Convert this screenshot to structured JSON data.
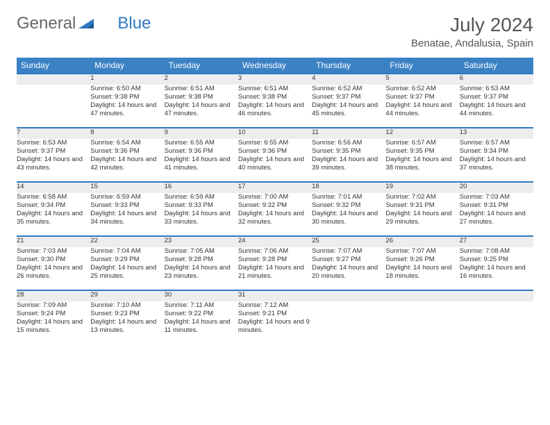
{
  "logo": {
    "text1": "General",
    "text2": "Blue"
  },
  "title": {
    "month": "July 2024",
    "location": "Benatae, Andalusia, Spain"
  },
  "styling": {
    "header_bg": "#3b82c4",
    "header_text": "#ffffff",
    "daynum_bg": "#eceeee",
    "row_border": "#2f78c4",
    "body_text": "#333333",
    "page_bg": "#ffffff",
    "font_small": 9.5,
    "font_daynum": 11,
    "font_header": 12,
    "font_title": 28,
    "font_location": 15
  },
  "day_headers": [
    "Sunday",
    "Monday",
    "Tuesday",
    "Wednesday",
    "Thursday",
    "Friday",
    "Saturday"
  ],
  "weeks": [
    [
      null,
      {
        "n": "1",
        "sr": "Sunrise: 6:50 AM",
        "ss": "Sunset: 9:38 PM",
        "dl": "Daylight: 14 hours and 47 minutes."
      },
      {
        "n": "2",
        "sr": "Sunrise: 6:51 AM",
        "ss": "Sunset: 9:38 PM",
        "dl": "Daylight: 14 hours and 47 minutes."
      },
      {
        "n": "3",
        "sr": "Sunrise: 6:51 AM",
        "ss": "Sunset: 9:38 PM",
        "dl": "Daylight: 14 hours and 46 minutes."
      },
      {
        "n": "4",
        "sr": "Sunrise: 6:52 AM",
        "ss": "Sunset: 9:37 PM",
        "dl": "Daylight: 14 hours and 45 minutes."
      },
      {
        "n": "5",
        "sr": "Sunrise: 6:52 AM",
        "ss": "Sunset: 9:37 PM",
        "dl": "Daylight: 14 hours and 44 minutes."
      },
      {
        "n": "6",
        "sr": "Sunrise: 6:53 AM",
        "ss": "Sunset: 9:37 PM",
        "dl": "Daylight: 14 hours and 44 minutes."
      }
    ],
    [
      {
        "n": "7",
        "sr": "Sunrise: 6:53 AM",
        "ss": "Sunset: 9:37 PM",
        "dl": "Daylight: 14 hours and 43 minutes."
      },
      {
        "n": "8",
        "sr": "Sunrise: 6:54 AM",
        "ss": "Sunset: 9:36 PM",
        "dl": "Daylight: 14 hours and 42 minutes."
      },
      {
        "n": "9",
        "sr": "Sunrise: 6:55 AM",
        "ss": "Sunset: 9:36 PM",
        "dl": "Daylight: 14 hours and 41 minutes."
      },
      {
        "n": "10",
        "sr": "Sunrise: 6:55 AM",
        "ss": "Sunset: 9:36 PM",
        "dl": "Daylight: 14 hours and 40 minutes."
      },
      {
        "n": "11",
        "sr": "Sunrise: 6:56 AM",
        "ss": "Sunset: 9:35 PM",
        "dl": "Daylight: 14 hours and 39 minutes."
      },
      {
        "n": "12",
        "sr": "Sunrise: 6:57 AM",
        "ss": "Sunset: 9:35 PM",
        "dl": "Daylight: 14 hours and 38 minutes."
      },
      {
        "n": "13",
        "sr": "Sunrise: 6:57 AM",
        "ss": "Sunset: 9:34 PM",
        "dl": "Daylight: 14 hours and 37 minutes."
      }
    ],
    [
      {
        "n": "14",
        "sr": "Sunrise: 6:58 AM",
        "ss": "Sunset: 9:34 PM",
        "dl": "Daylight: 14 hours and 35 minutes."
      },
      {
        "n": "15",
        "sr": "Sunrise: 6:59 AM",
        "ss": "Sunset: 9:33 PM",
        "dl": "Daylight: 14 hours and 34 minutes."
      },
      {
        "n": "16",
        "sr": "Sunrise: 6:59 AM",
        "ss": "Sunset: 9:33 PM",
        "dl": "Daylight: 14 hours and 33 minutes."
      },
      {
        "n": "17",
        "sr": "Sunrise: 7:00 AM",
        "ss": "Sunset: 9:32 PM",
        "dl": "Daylight: 14 hours and 32 minutes."
      },
      {
        "n": "18",
        "sr": "Sunrise: 7:01 AM",
        "ss": "Sunset: 9:32 PM",
        "dl": "Daylight: 14 hours and 30 minutes."
      },
      {
        "n": "19",
        "sr": "Sunrise: 7:02 AM",
        "ss": "Sunset: 9:31 PM",
        "dl": "Daylight: 14 hours and 29 minutes."
      },
      {
        "n": "20",
        "sr": "Sunrise: 7:03 AM",
        "ss": "Sunset: 9:31 PM",
        "dl": "Daylight: 14 hours and 27 minutes."
      }
    ],
    [
      {
        "n": "21",
        "sr": "Sunrise: 7:03 AM",
        "ss": "Sunset: 9:30 PM",
        "dl": "Daylight: 14 hours and 26 minutes."
      },
      {
        "n": "22",
        "sr": "Sunrise: 7:04 AM",
        "ss": "Sunset: 9:29 PM",
        "dl": "Daylight: 14 hours and 25 minutes."
      },
      {
        "n": "23",
        "sr": "Sunrise: 7:05 AM",
        "ss": "Sunset: 9:28 PM",
        "dl": "Daylight: 14 hours and 23 minutes."
      },
      {
        "n": "24",
        "sr": "Sunrise: 7:06 AM",
        "ss": "Sunset: 9:28 PM",
        "dl": "Daylight: 14 hours and 21 minutes."
      },
      {
        "n": "25",
        "sr": "Sunrise: 7:07 AM",
        "ss": "Sunset: 9:27 PM",
        "dl": "Daylight: 14 hours and 20 minutes."
      },
      {
        "n": "26",
        "sr": "Sunrise: 7:07 AM",
        "ss": "Sunset: 9:26 PM",
        "dl": "Daylight: 14 hours and 18 minutes."
      },
      {
        "n": "27",
        "sr": "Sunrise: 7:08 AM",
        "ss": "Sunset: 9:25 PM",
        "dl": "Daylight: 14 hours and 16 minutes."
      }
    ],
    [
      {
        "n": "28",
        "sr": "Sunrise: 7:09 AM",
        "ss": "Sunset: 9:24 PM",
        "dl": "Daylight: 14 hours and 15 minutes."
      },
      {
        "n": "29",
        "sr": "Sunrise: 7:10 AM",
        "ss": "Sunset: 9:23 PM",
        "dl": "Daylight: 14 hours and 13 minutes."
      },
      {
        "n": "30",
        "sr": "Sunrise: 7:11 AM",
        "ss": "Sunset: 9:22 PM",
        "dl": "Daylight: 14 hours and 11 minutes."
      },
      {
        "n": "31",
        "sr": "Sunrise: 7:12 AM",
        "ss": "Sunset: 9:21 PM",
        "dl": "Daylight: 14 hours and 9 minutes."
      },
      null,
      null,
      null
    ]
  ]
}
